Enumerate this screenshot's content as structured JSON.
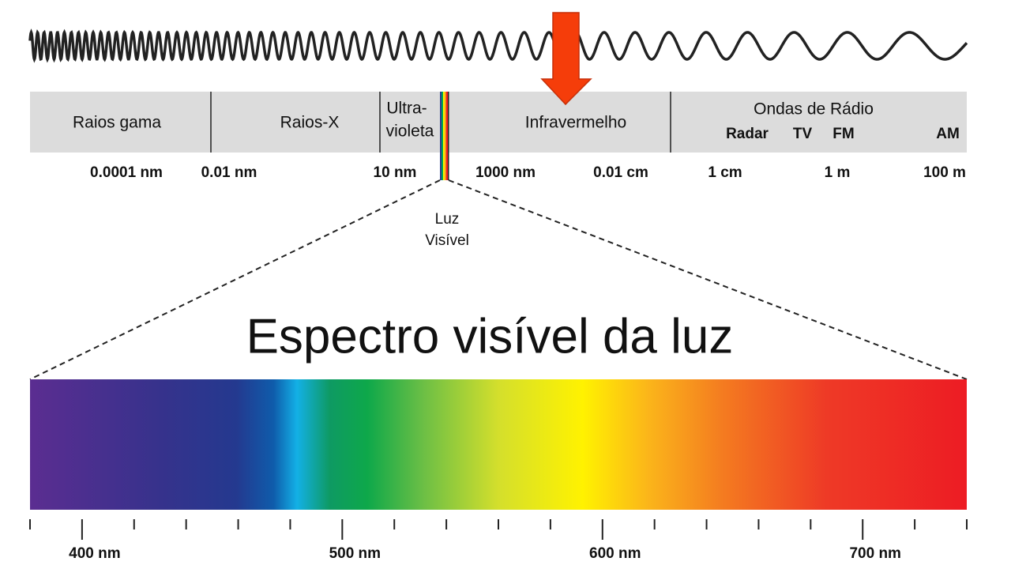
{
  "regions": [
    {
      "label": "Raios gama"
    },
    {
      "label": "Raios-X"
    },
    {
      "label": [
        "Ultra-",
        "violeta"
      ]
    },
    {
      "label": "Infravermelho"
    },
    {
      "label": "Ondas de Rádio",
      "bands": [
        "Radar",
        "TV",
        "FM",
        "AM"
      ]
    }
  ],
  "scale": [
    "0.0001 nm",
    "0.01 nm",
    "10 nm",
    "1000 nm",
    "0.01 cm",
    "1 cm",
    "1 m",
    "100 m"
  ],
  "visible_label": [
    "Luz",
    "Visível"
  ],
  "title": "Espectro visível da luz",
  "wavelength_labels": [
    "400 nm",
    "500 nm",
    "600 nm",
    "700 nm"
  ]
}
